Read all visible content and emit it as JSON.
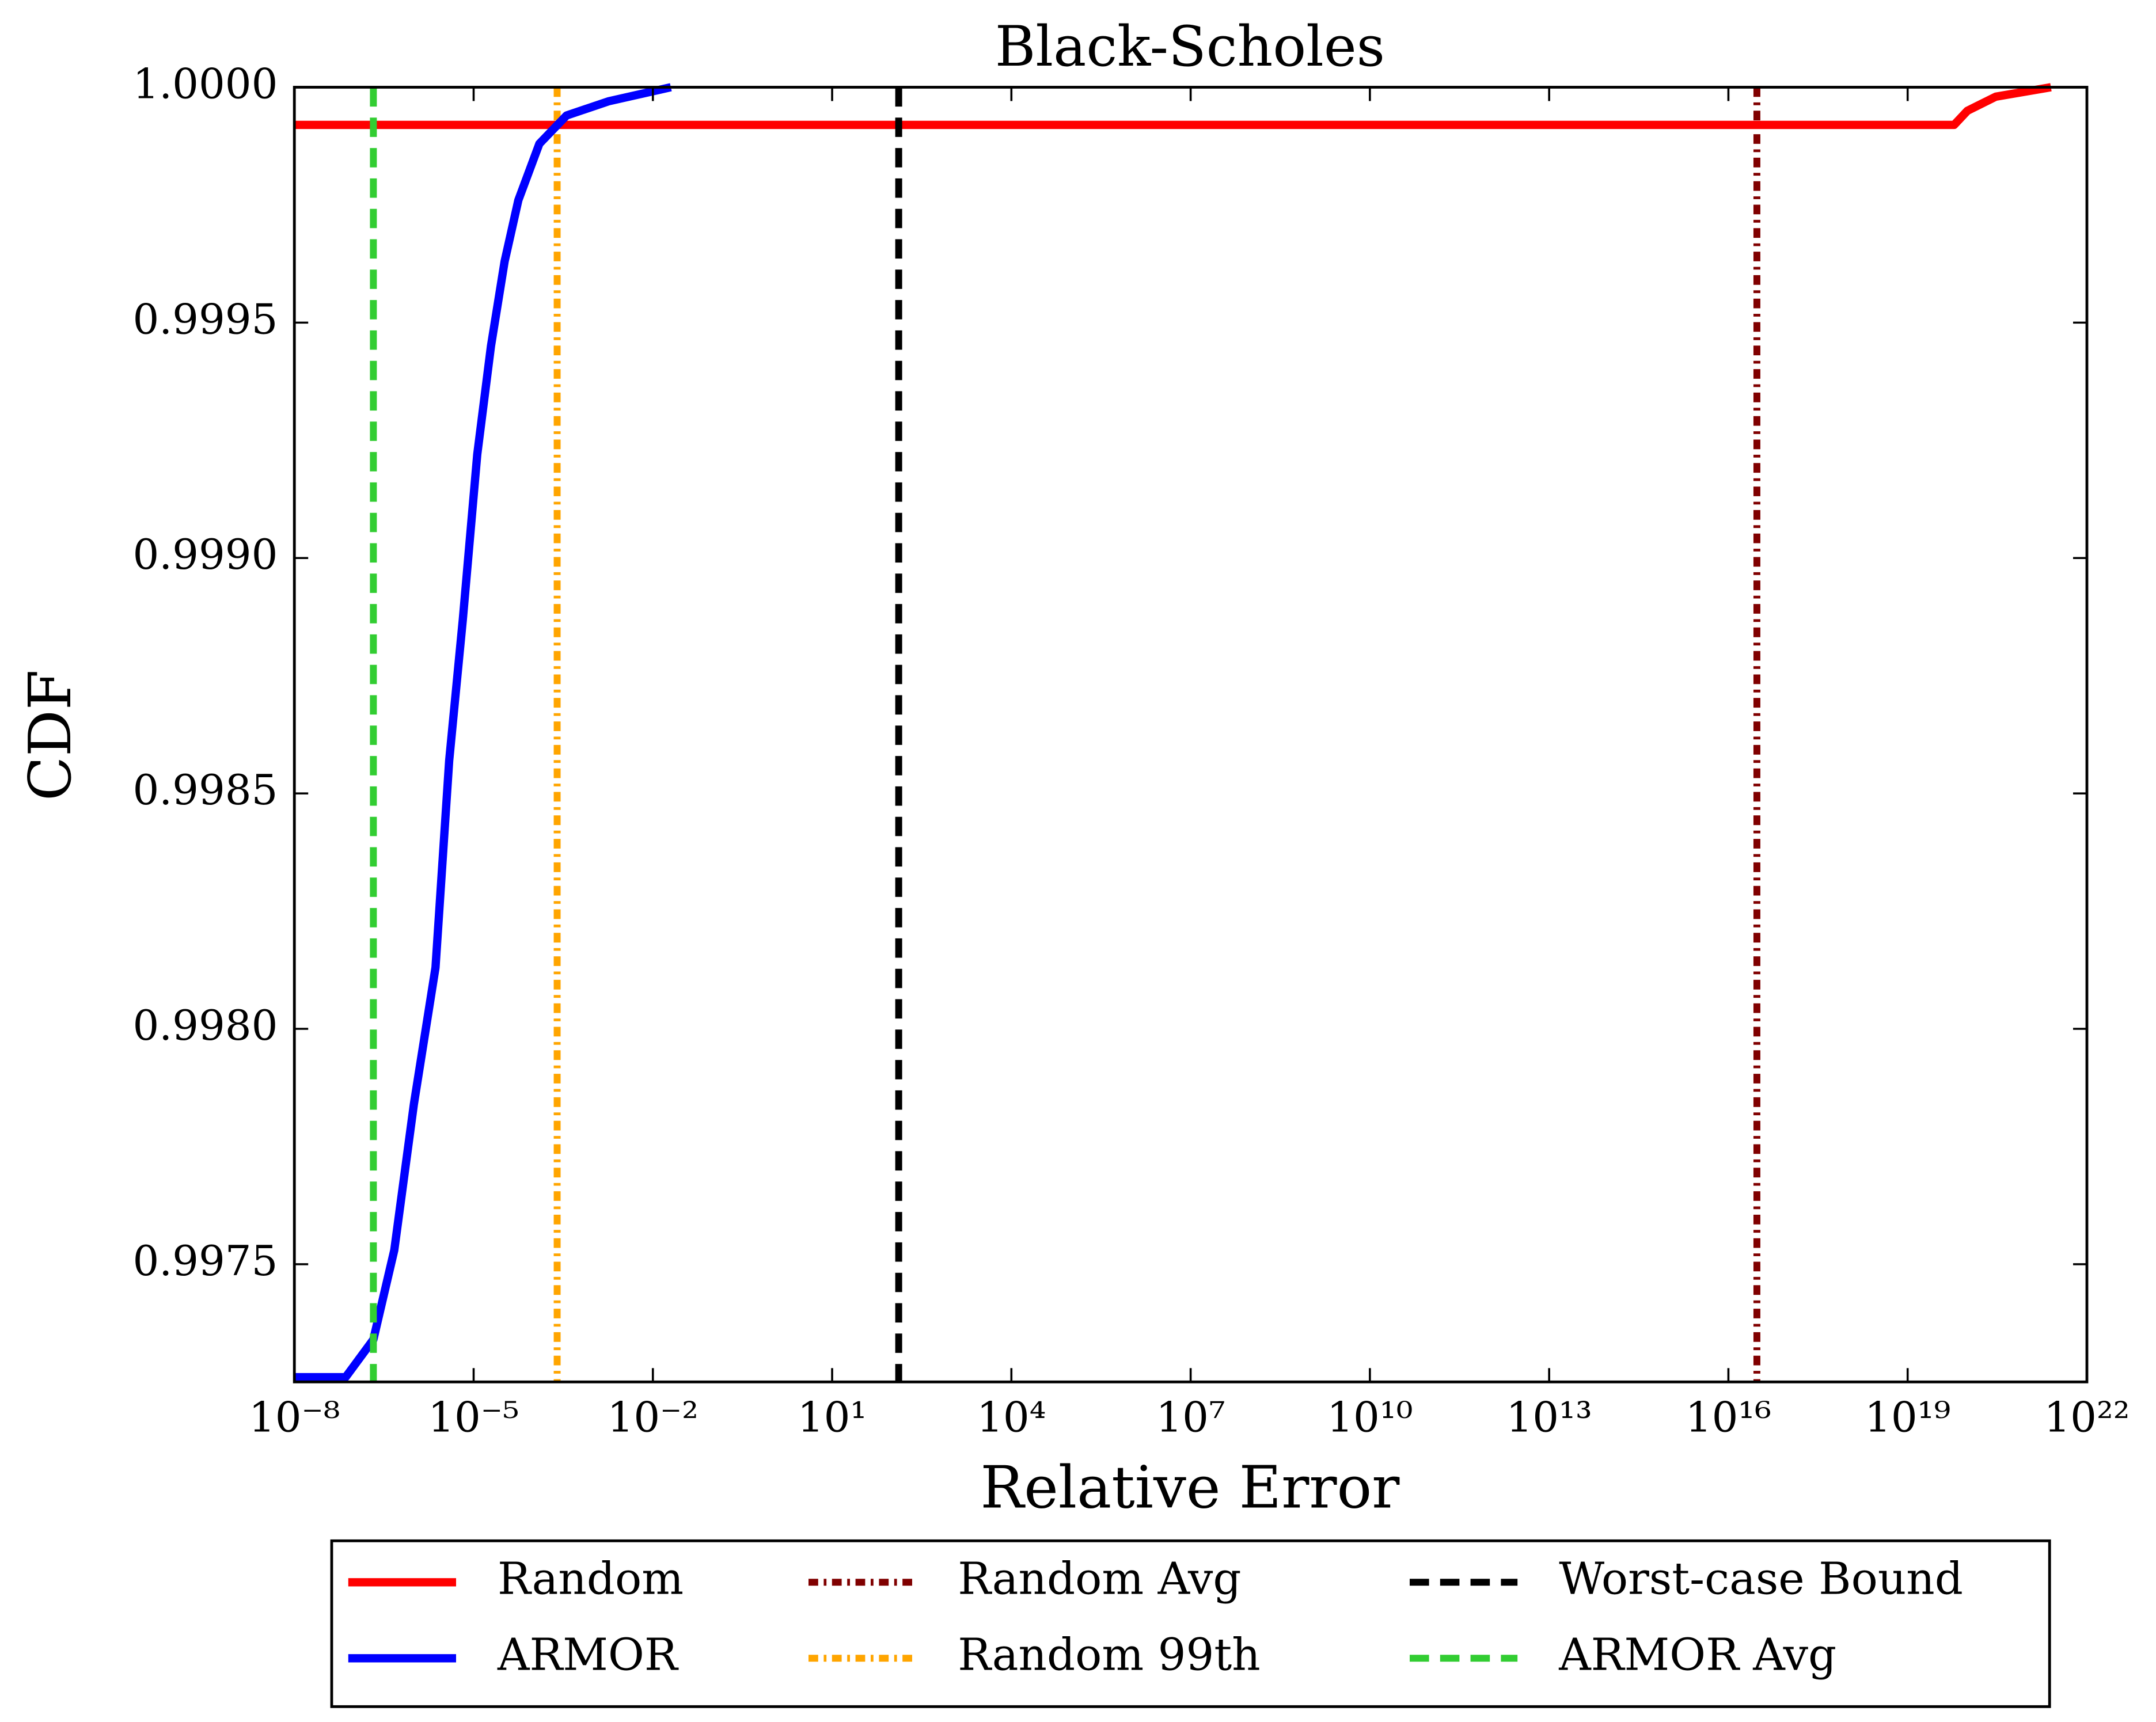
{
  "chart_data": {
    "type": "line",
    "title": "Black-Scholes",
    "x_label": "Relative Error",
    "y_label": "CDF",
    "xscale": "log",
    "xlim": [
      1e-08,
      1e+22
    ],
    "ylim": [
      0.99725,
      1.0
    ],
    "xticks": [
      {
        "value": 1e-08,
        "label": "10⁻⁸"
      },
      {
        "value": 1e-05,
        "label": "10⁻⁵"
      },
      {
        "value": 0.01,
        "label": "10⁻²"
      },
      {
        "value": 10,
        "label": "10¹"
      },
      {
        "value": 10000.0,
        "label": "10⁴"
      },
      {
        "value": 10000000.0,
        "label": "10⁷"
      },
      {
        "value": 10000000000.0,
        "label": "10¹⁰"
      },
      {
        "value": 10000000000000.0,
        "label": "10¹³"
      },
      {
        "value": 1e+16,
        "label": "10¹⁶"
      },
      {
        "value": 1e+19,
        "label": "10¹⁹"
      },
      {
        "value": 1e+22,
        "label": "10²²"
      }
    ],
    "yticks": [
      0.9975,
      {
        "value": 0.998,
        "label": "0.9980"
      },
      0.9985,
      {
        "value": 0.999,
        "label": "0.9990"
      },
      0.9995,
      {
        "value": 1,
        "label": "1.0000"
      }
    ],
    "legend": "lower center outside",
    "series": [
      {
        "name": "Random",
        "color": "#ff0000",
        "style": "solid",
        "x": [
          1e-08,
          6e+19,
          1e+20,
          3e+20,
          2.5e+21
        ],
        "values": [
          0.99992,
          0.99992,
          0.99995,
          0.99998,
          1.0
        ]
      },
      {
        "name": "ARMOR",
        "color": "#0000ff",
        "style": "solid",
        "x": [
          1e-08,
          7.2e-08,
          2.1e-07,
          4.7e-07,
          1e-06,
          2.3e-06,
          3.9e-06,
          6.6e-06,
          1.15e-05,
          1.95e-05,
          3.3e-05,
          5.6e-05,
          0.000126,
          0.00036,
          0.0018,
          0.02
        ],
        "values": [
          0.99726,
          0.99726,
          0.99734,
          0.99753,
          0.99784,
          0.99813,
          0.99857,
          0.99887,
          0.99922,
          0.99945,
          0.99963,
          0.99976,
          0.99988,
          0.99994,
          0.99997,
          1.0
        ]
      }
    ],
    "vlines": [
      {
        "name": "Random Avg",
        "color": "#800000",
        "style": "dashdot",
        "x": 3e+16
      },
      {
        "name": "Random 99th",
        "color": "#ffa500",
        "style": "dashdot",
        "x": 0.00025
      },
      {
        "name": "Worst-case Bound",
        "color": "#000000",
        "style": "dashed",
        "x": 130
      },
      {
        "name": "ARMOR Avg",
        "color": "#32cd32",
        "style": "dashed",
        "x": 2.1e-07
      }
    ]
  }
}
